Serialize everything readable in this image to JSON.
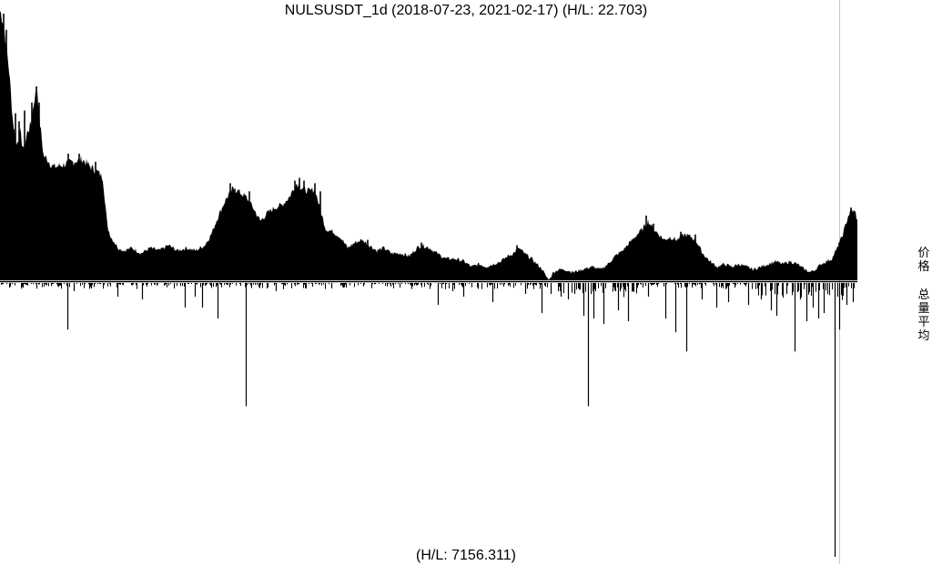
{
  "chart_data": {
    "type": "area",
    "title": "NULSUSDT_1d (2018-07-23, 2021-02-17) (H/L: 22.703)",
    "footer": "(H/L: 7156.311)",
    "side_labels": {
      "price": "价格",
      "volume": "总量平均"
    },
    "colors": {
      "fill": "#000000",
      "background": "#ffffff",
      "divider": "#c8c8c8"
    },
    "price_panel": {
      "note": "price series above midline, estimated relative height (1.0 = panel top)",
      "anchors": [
        [
          0,
          1.0
        ],
        [
          3,
          0.97
        ],
        [
          6,
          0.9
        ],
        [
          10,
          0.78
        ],
        [
          14,
          0.6
        ],
        [
          18,
          0.5
        ],
        [
          22,
          0.55
        ],
        [
          26,
          0.48
        ],
        [
          30,
          0.55
        ],
        [
          34,
          0.58
        ],
        [
          38,
          0.68
        ],
        [
          41,
          0.71
        ],
        [
          44,
          0.58
        ],
        [
          48,
          0.46
        ],
        [
          52,
          0.45
        ],
        [
          56,
          0.43
        ],
        [
          60,
          0.42
        ],
        [
          70,
          0.43
        ],
        [
          80,
          0.44
        ],
        [
          90,
          0.45
        ],
        [
          100,
          0.42
        ],
        [
          108,
          0.4
        ],
        [
          113,
          0.38
        ],
        [
          118,
          0.2
        ],
        [
          122,
          0.16
        ],
        [
          126,
          0.14
        ],
        [
          130,
          0.12
        ],
        [
          136,
          0.11
        ],
        [
          145,
          0.12
        ],
        [
          155,
          0.1
        ],
        [
          165,
          0.12
        ],
        [
          175,
          0.11
        ],
        [
          185,
          0.13
        ],
        [
          195,
          0.11
        ],
        [
          205,
          0.12
        ],
        [
          215,
          0.11
        ],
        [
          225,
          0.13
        ],
        [
          232,
          0.17
        ],
        [
          240,
          0.24
        ],
        [
          248,
          0.3
        ],
        [
          256,
          0.34
        ],
        [
          262,
          0.33
        ],
        [
          270,
          0.31
        ],
        [
          278,
          0.27
        ],
        [
          286,
          0.22
        ],
        [
          294,
          0.25
        ],
        [
          302,
          0.27
        ],
        [
          310,
          0.28
        ],
        [
          318,
          0.31
        ],
        [
          326,
          0.36
        ],
        [
          332,
          0.34
        ],
        [
          340,
          0.33
        ],
        [
          346,
          0.34
        ],
        [
          352,
          0.26
        ],
        [
          358,
          0.19
        ],
        [
          366,
          0.18
        ],
        [
          374,
          0.16
        ],
        [
          382,
          0.12
        ],
        [
          390,
          0.14
        ],
        [
          398,
          0.15
        ],
        [
          406,
          0.13
        ],
        [
          414,
          0.11
        ],
        [
          422,
          0.12
        ],
        [
          430,
          0.1
        ],
        [
          440,
          0.1
        ],
        [
          450,
          0.09
        ],
        [
          458,
          0.12
        ],
        [
          464,
          0.13
        ],
        [
          472,
          0.12
        ],
        [
          480,
          0.1
        ],
        [
          490,
          0.08
        ],
        [
          500,
          0.08
        ],
        [
          510,
          0.07
        ],
        [
          518,
          0.05
        ],
        [
          526,
          0.06
        ],
        [
          534,
          0.05
        ],
        [
          542,
          0.06
        ],
        [
          550,
          0.07
        ],
        [
          558,
          0.09
        ],
        [
          564,
          0.1
        ],
        [
          570,
          0.12
        ],
        [
          576,
          0.1
        ],
        [
          584,
          0.08
        ],
        [
          590,
          0.06
        ],
        [
          596,
          0.04
        ],
        [
          599,
          0.02
        ],
        [
          603,
          0.0
        ],
        [
          608,
          0.03
        ],
        [
          614,
          0.04
        ],
        [
          620,
          0.04
        ],
        [
          630,
          0.03
        ],
        [
          640,
          0.04
        ],
        [
          650,
          0.05
        ],
        [
          660,
          0.04
        ],
        [
          668,
          0.06
        ],
        [
          676,
          0.09
        ],
        [
          684,
          0.11
        ],
        [
          692,
          0.14
        ],
        [
          700,
          0.17
        ],
        [
          706,
          0.19
        ],
        [
          712,
          0.22
        ],
        [
          718,
          0.19
        ],
        [
          724,
          0.17
        ],
        [
          730,
          0.15
        ],
        [
          736,
          0.16
        ],
        [
          744,
          0.15
        ],
        [
          752,
          0.17
        ],
        [
          760,
          0.16
        ],
        [
          766,
          0.14
        ],
        [
          772,
          0.1
        ],
        [
          780,
          0.07
        ],
        [
          788,
          0.05
        ],
        [
          796,
          0.06
        ],
        [
          804,
          0.05
        ],
        [
          812,
          0.06
        ],
        [
          820,
          0.05
        ],
        [
          828,
          0.04
        ],
        [
          836,
          0.05
        ],
        [
          844,
          0.06
        ],
        [
          852,
          0.07
        ],
        [
          860,
          0.06
        ],
        [
          868,
          0.07
        ],
        [
          876,
          0.06
        ],
        [
          884,
          0.04
        ],
        [
          890,
          0.03
        ],
        [
          896,
          0.04
        ],
        [
          902,
          0.06
        ],
        [
          908,
          0.07
        ],
        [
          914,
          0.08
        ],
        [
          920,
          0.12
        ],
        [
          926,
          0.17
        ],
        [
          932,
          0.24
        ],
        [
          936,
          0.26
        ],
        [
          940,
          0.25
        ],
        [
          942,
          0.22
        ]
      ],
      "peaks": [
        [
          1,
          0.97
        ],
        [
          4,
          0.99
        ],
        [
          7,
          0.93
        ],
        [
          17,
          0.62
        ],
        [
          21,
          0.59
        ],
        [
          27,
          0.63
        ],
        [
          35,
          0.66
        ],
        [
          40,
          0.72
        ],
        [
          43,
          0.66
        ],
        [
          75,
          0.47
        ],
        [
          87,
          0.47
        ],
        [
          105,
          0.44
        ],
        [
          253,
          0.36
        ],
        [
          258,
          0.34
        ],
        [
          274,
          0.33
        ],
        [
          324,
          0.37
        ],
        [
          329,
          0.38
        ],
        [
          334,
          0.37
        ],
        [
          346,
          0.36
        ],
        [
          352,
          0.33
        ],
        [
          404,
          0.15
        ],
        [
          463,
          0.14
        ],
        [
          568,
          0.13
        ],
        [
          710,
          0.24
        ],
        [
          718,
          0.21
        ],
        [
          748,
          0.18
        ],
        [
          764,
          0.17
        ],
        [
          922,
          0.14
        ],
        [
          935,
          0.27
        ]
      ]
    },
    "volume_panel": {
      "note": "volume series below midline, relative magnitude (1.0 = largest spike)",
      "spikes": [
        [
          74,
          0.17
        ],
        [
          81,
          0.03
        ],
        [
          100,
          0.02
        ],
        [
          129,
          0.05
        ],
        [
          156,
          0.06
        ],
        [
          203,
          0.09
        ],
        [
          214,
          0.05
        ],
        [
          222,
          0.09
        ],
        [
          239,
          0.13
        ],
        [
          270,
          0.45
        ],
        [
          303,
          0.03
        ],
        [
          364,
          0.02
        ],
        [
          481,
          0.08
        ],
        [
          497,
          0.03
        ],
        [
          509,
          0.05
        ],
        [
          541,
          0.07
        ],
        [
          577,
          0.04
        ],
        [
          595,
          0.11
        ],
        [
          605,
          0.04
        ],
        [
          616,
          0.05
        ],
        [
          624,
          0.06
        ],
        [
          631,
          0.04
        ],
        [
          641,
          0.12
        ],
        [
          646,
          0.45
        ],
        [
          652,
          0.13
        ],
        [
          663,
          0.15
        ],
        [
          679,
          0.1
        ],
        [
          690,
          0.14
        ],
        [
          712,
          0.05
        ],
        [
          731,
          0.13
        ],
        [
          742,
          0.18
        ],
        [
          754,
          0.25
        ],
        [
          771,
          0.06
        ],
        [
          787,
          0.09
        ],
        [
          800,
          0.07
        ],
        [
          822,
          0.08
        ],
        [
          836,
          0.06
        ],
        [
          847,
          0.1
        ],
        [
          853,
          0.12
        ],
        [
          864,
          0.04
        ],
        [
          873,
          0.25
        ],
        [
          879,
          0.06
        ],
        [
          886,
          0.14
        ],
        [
          893,
          0.09
        ],
        [
          899,
          0.13
        ],
        [
          905,
          0.11
        ],
        [
          917,
          1.0
        ],
        [
          922,
          0.17
        ],
        [
          930,
          0.08
        ],
        [
          937,
          0.07
        ]
      ]
    }
  }
}
